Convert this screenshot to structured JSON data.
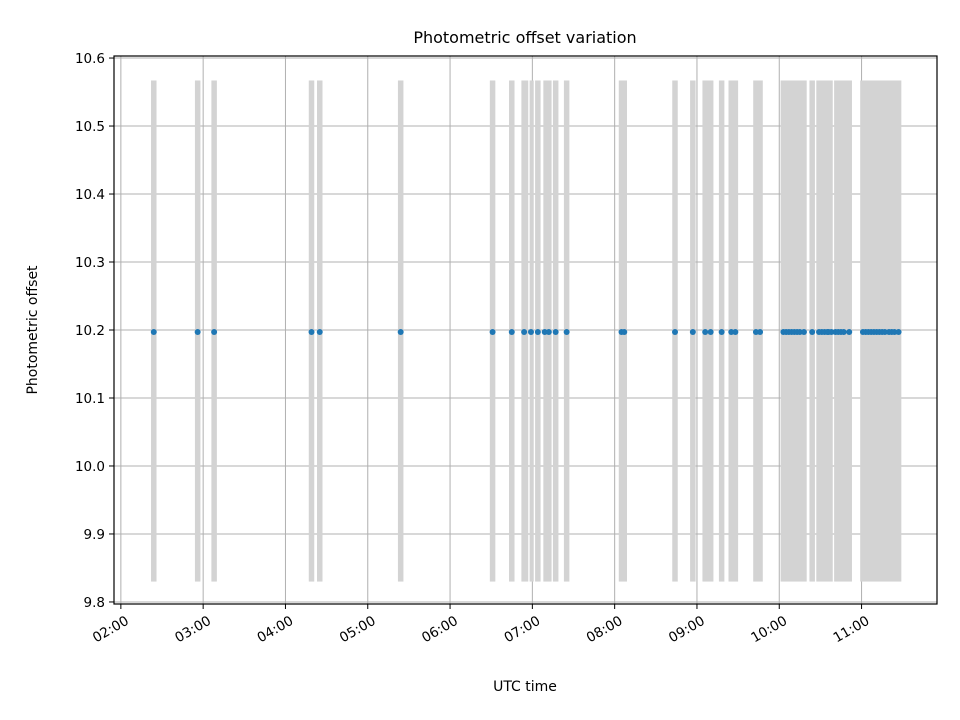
{
  "chart_data": {
    "type": "scatter",
    "title": "Photometric offset variation",
    "xlabel": "UTC time",
    "ylabel": "Photometric offset",
    "x_axis_type": "time",
    "xlim": [
      "01:55",
      "11:55"
    ],
    "ylim": [
      9.797,
      10.603
    ],
    "x_ticks": [
      "02:00",
      "03:00",
      "04:00",
      "05:00",
      "06:00",
      "07:00",
      "08:00",
      "09:00",
      "10:00",
      "11:00"
    ],
    "y_ticks": [
      9.8,
      9.9,
      10.0,
      10.1,
      10.2,
      10.3,
      10.4,
      10.5,
      10.6
    ],
    "y_tick_labels": [
      "9.8",
      "9.9",
      "10.0",
      "10.1",
      "10.2",
      "10.3",
      "10.4",
      "10.5",
      "10.6"
    ],
    "grid": true,
    "shaded_range": [
      9.83,
      10.567
    ],
    "shaded_color": "#d3d3d3",
    "series_color": "#1f77b4",
    "series": [
      {
        "x": [
          "02:24",
          "02:56",
          "03:08",
          "04:19",
          "04:25",
          "05:24",
          "06:31",
          "06:45",
          "06:54",
          "06:59",
          "07:04",
          "07:09",
          "07:12",
          "07:17",
          "07:25",
          "08:05",
          "08:07",
          "08:44",
          "08:57",
          "09:06",
          "09:10",
          "09:18",
          "09:25",
          "09:28",
          "09:43",
          "09:46",
          "10:03",
          "10:05",
          "10:07",
          "10:09",
          "10:11",
          "10:13",
          "10:15",
          "10:18",
          "10:24",
          "10:29",
          "10:31",
          "10:33",
          "10:35",
          "10:36",
          "10:38",
          "10:41",
          "10:43",
          "10:45",
          "10:47",
          "10:51",
          "11:01",
          "11:03",
          "11:05",
          "11:07",
          "11:09",
          "11:11",
          "11:13",
          "11:15",
          "11:17",
          "11:20",
          "11:22",
          "11:24",
          "11:27"
        ],
        "y": [
          10.197,
          10.197,
          10.197,
          10.197,
          10.197,
          10.197,
          10.197,
          10.197,
          10.197,
          10.197,
          10.197,
          10.197,
          10.197,
          10.197,
          10.197,
          10.197,
          10.197,
          10.197,
          10.197,
          10.197,
          10.197,
          10.197,
          10.197,
          10.197,
          10.197,
          10.197,
          10.197,
          10.197,
          10.197,
          10.197,
          10.197,
          10.197,
          10.197,
          10.197,
          10.197,
          10.197,
          10.197,
          10.197,
          10.197,
          10.197,
          10.197,
          10.197,
          10.197,
          10.197,
          10.197,
          10.197,
          10.197,
          10.197,
          10.197,
          10.197,
          10.197,
          10.197,
          10.197,
          10.197,
          10.197,
          10.197,
          10.197,
          10.197,
          10.197
        ]
      }
    ],
    "shaded_bands": [
      [
        "02:22",
        "02:26"
      ],
      [
        "02:54",
        "02:58"
      ],
      [
        "03:06",
        "03:10"
      ],
      [
        "04:17",
        "04:21"
      ],
      [
        "04:23",
        "04:27"
      ],
      [
        "05:22",
        "05:26"
      ],
      [
        "06:29",
        "06:33"
      ],
      [
        "06:43",
        "06:47"
      ],
      [
        "06:52",
        "06:57"
      ],
      [
        "06:58",
        "07:01"
      ],
      [
        "07:02",
        "07:06"
      ],
      [
        "07:08",
        "07:14"
      ],
      [
        "07:15",
        "07:19"
      ],
      [
        "07:23",
        "07:27"
      ],
      [
        "08:03",
        "08:09"
      ],
      [
        "08:42",
        "08:46"
      ],
      [
        "08:55",
        "08:59"
      ],
      [
        "09:04",
        "09:12"
      ],
      [
        "09:16",
        "09:20"
      ],
      [
        "09:23",
        "09:30"
      ],
      [
        "09:41",
        "09:48"
      ],
      [
        "10:01",
        "10:20"
      ],
      [
        "10:22",
        "10:26"
      ],
      [
        "10:27",
        "10:39"
      ],
      [
        "10:40",
        "10:53"
      ],
      [
        "10:59",
        "11:29"
      ]
    ]
  }
}
